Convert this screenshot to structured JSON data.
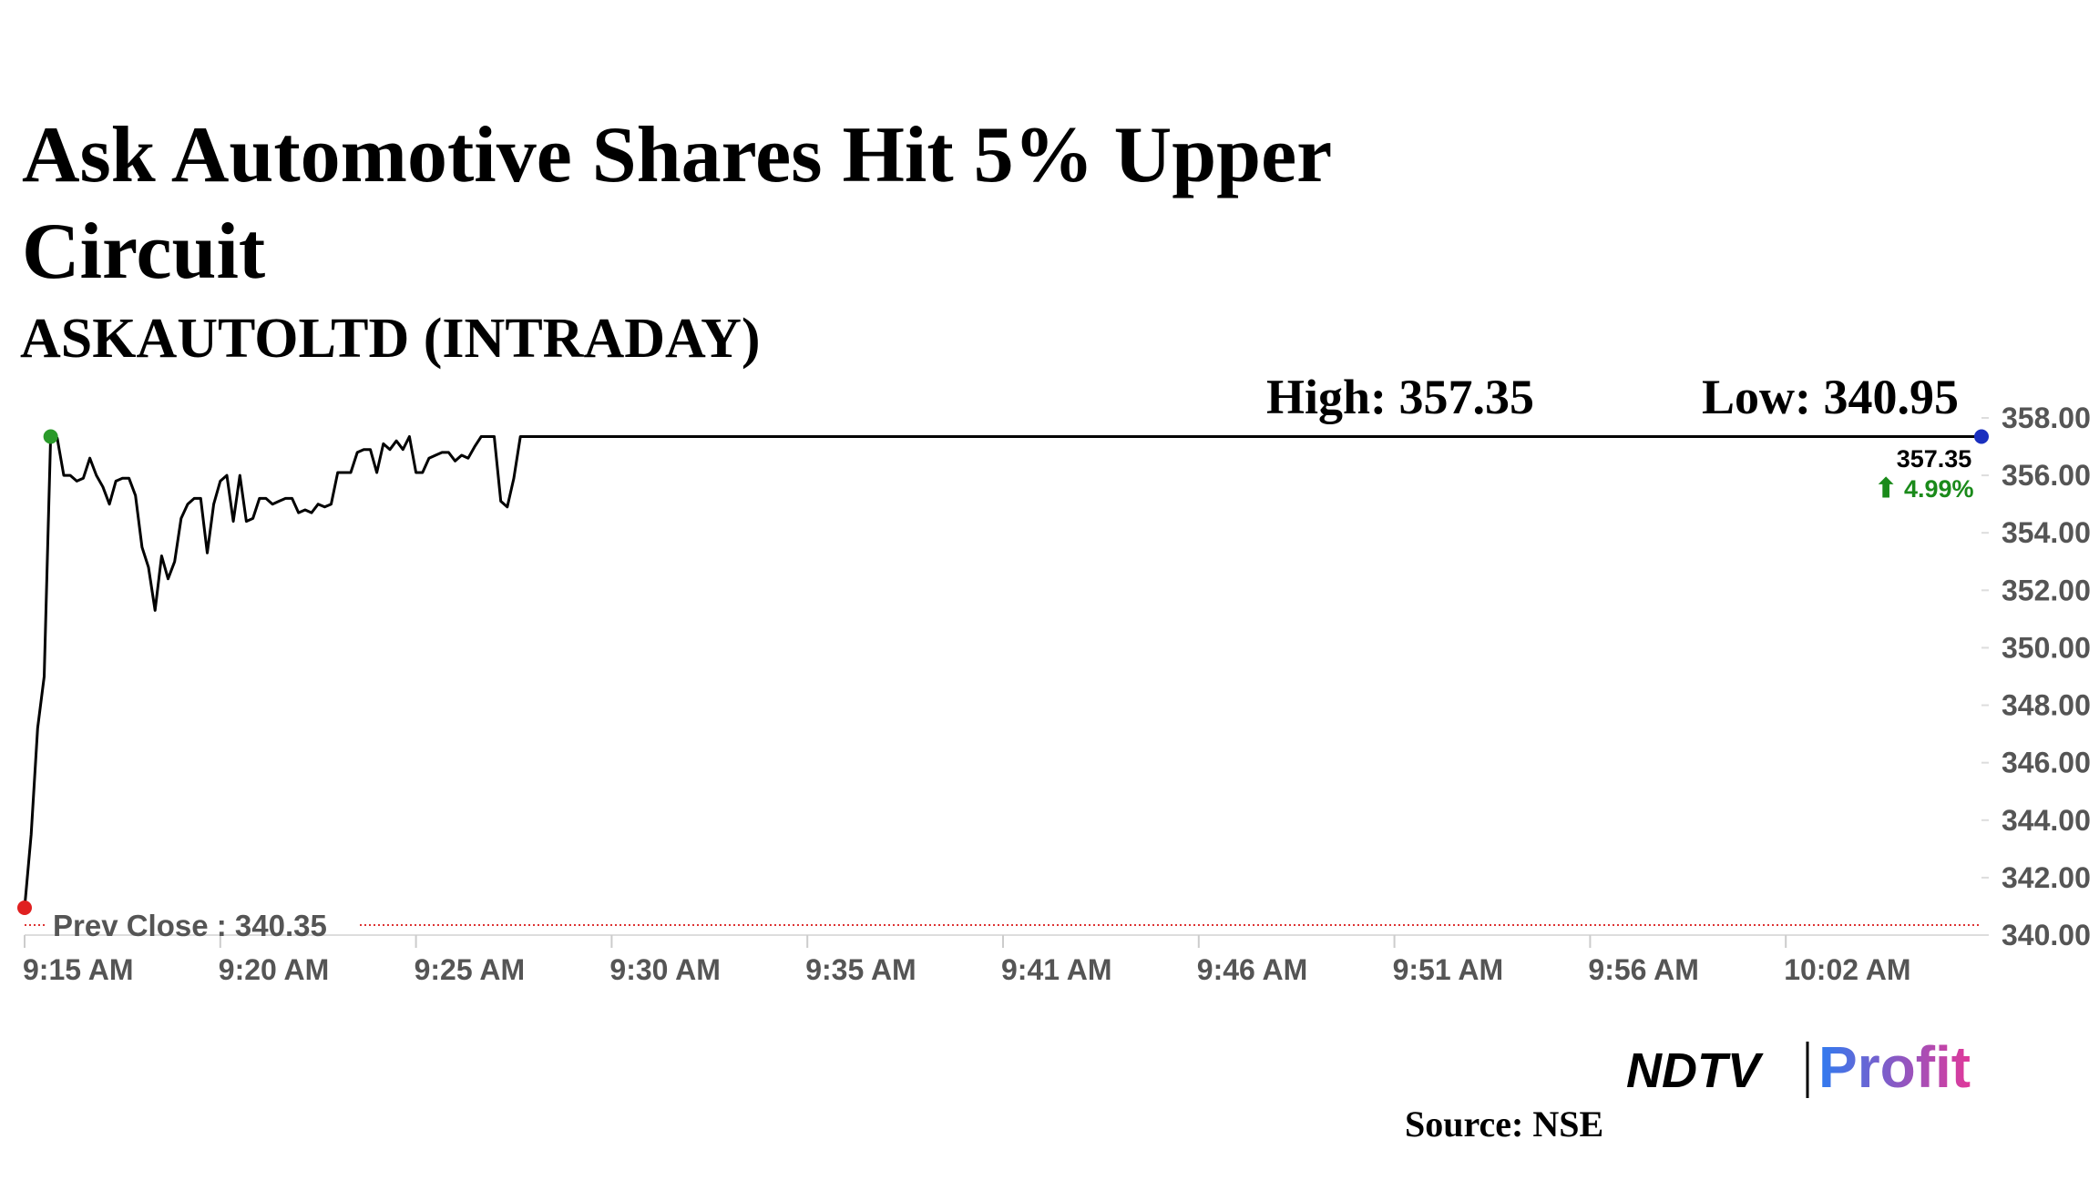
{
  "chart_data": {
    "type": "line",
    "title": "Ask Automotive Shares Hit 5% Upper Circuit",
    "subtitle": "ASKAUTOLTD (INTRADAY)",
    "high": {
      "value": 357.35,
      "label": "High: 357.35"
    },
    "low": {
      "value": 340.95,
      "label": "Low: 340.95"
    },
    "prev_close": {
      "value": 340.35,
      "label": "Prev Close : 340.35"
    },
    "last": {
      "value": 357.35,
      "label": "357.35"
    },
    "change": {
      "value": 4.99,
      "label": "4.99%"
    },
    "x": [
      0,
      1,
      2,
      3,
      4,
      5,
      6,
      7,
      8,
      9,
      10,
      11,
      12,
      13,
      14,
      15,
      16,
      17,
      18,
      19,
      20,
      21,
      22,
      23,
      24,
      25,
      26,
      27,
      28,
      29,
      30,
      31,
      32,
      33,
      34,
      35,
      36,
      37,
      38,
      39,
      40,
      41,
      42,
      43,
      44,
      45,
      46,
      47,
      48,
      49,
      50,
      51,
      52,
      53,
      54,
      55,
      56,
      57,
      58,
      59,
      60,
      61,
      62,
      63,
      64,
      65,
      66,
      67,
      68,
      69,
      70,
      71,
      72,
      73,
      74,
      75,
      76,
      300
    ],
    "values": [
      340.95,
      343.5,
      347.2,
      349.0,
      357.35,
      357.3,
      356.0,
      356.0,
      355.8,
      355.9,
      356.6,
      356.0,
      355.6,
      355.0,
      355.8,
      355.9,
      355.9,
      355.3,
      353.5,
      352.8,
      351.3,
      353.2,
      352.4,
      353.0,
      354.5,
      355.0,
      355.2,
      355.2,
      353.3,
      355.0,
      355.8,
      356.0,
      354.4,
      356.0,
      354.4,
      354.5,
      355.2,
      355.2,
      355.0,
      355.1,
      355.2,
      355.2,
      354.7,
      354.8,
      354.7,
      355.0,
      354.9,
      355.0,
      356.1,
      356.1,
      356.1,
      356.8,
      356.9,
      356.9,
      356.1,
      357.1,
      356.9,
      357.2,
      356.9,
      357.35,
      356.1,
      356.1,
      356.6,
      356.7,
      356.8,
      356.8,
      356.5,
      356.7,
      356.6,
      357.0,
      357.35,
      357.35,
      357.35,
      355.1,
      354.9,
      355.9,
      357.35,
      357.35
    ],
    "color": "#000000",
    "xlim": [
      0,
      300
    ],
    "xticks": [
      {
        "value": 0,
        "label": "9:15 AM"
      },
      {
        "value": 30,
        "label": "9:20 AM"
      },
      {
        "value": 60,
        "label": "9:25 AM"
      },
      {
        "value": 90,
        "label": "9:30 AM"
      },
      {
        "value": 120,
        "label": "9:35 AM"
      },
      {
        "value": 150,
        "label": "9:41 AM"
      },
      {
        "value": 180,
        "label": "9:46 AM"
      },
      {
        "value": 210,
        "label": "9:51 AM"
      },
      {
        "value": 240,
        "label": "9:56 AM"
      },
      {
        "value": 270,
        "label": "10:02 AM"
      }
    ],
    "ylim": [
      340,
      358
    ],
    "yticks": [
      {
        "value": 340,
        "label": "340.00"
      },
      {
        "value": 342,
        "label": "342.00"
      },
      {
        "value": 344,
        "label": "344.00"
      },
      {
        "value": 346,
        "label": "346.00"
      },
      {
        "value": 348,
        "label": "348.00"
      },
      {
        "value": 350,
        "label": "350.00"
      },
      {
        "value": 352,
        "label": "352.00"
      },
      {
        "value": 354,
        "label": "354.00"
      },
      {
        "value": 356,
        "label": "356.00"
      },
      {
        "value": 358,
        "label": "358.00"
      }
    ],
    "source": "Source: NSE",
    "logo": {
      "left": "NDTV",
      "right": "Profit"
    }
  }
}
